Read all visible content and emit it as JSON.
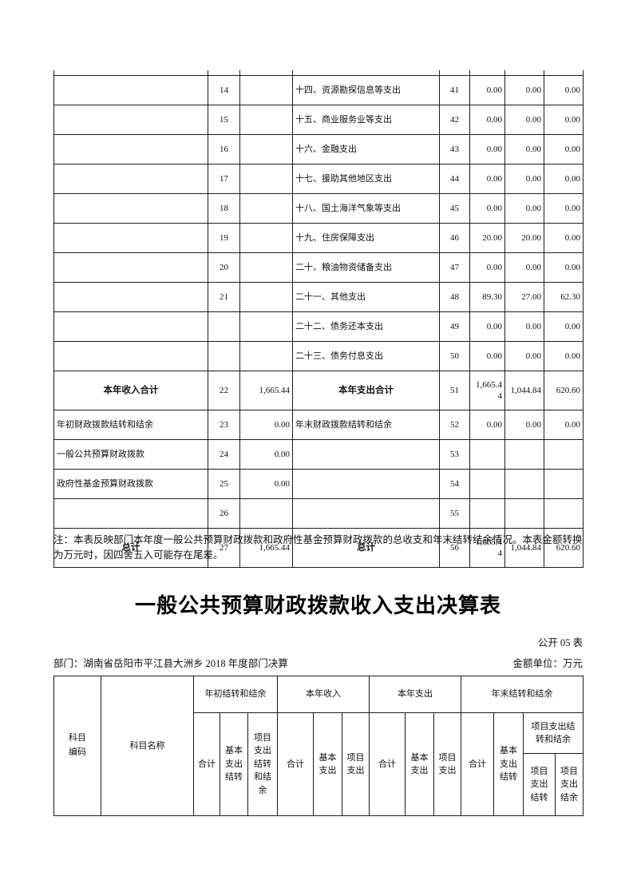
{
  "page": {
    "note": "注：本表反映部门本年度一般公共预算财政拨款和政府性基金预算财政拨款的总收支和年末结转结余情况。本表金额转换为万元时，因四舍五入可能存在尾差。",
    "title": "一般公共预算财政拨款收入支出决算表",
    "table_code": "公开 05 表",
    "department_line": "部门：湖南省岳阳市平江县大洲乡 2018 年度部门决算",
    "unit_line": "金额单位：万元"
  },
  "summary_table": {
    "rows": [
      {
        "income_label": "",
        "income_line": "14",
        "income_amount": "",
        "exp_label": "十四、资源勘探信息等支出",
        "exp_line": "41",
        "exp_total": "0.00",
        "exp_basic": "0.00",
        "exp_project": "0.00",
        "emphasis": false
      },
      {
        "income_label": "",
        "income_line": "15",
        "income_amount": "",
        "exp_label": "十五、商业服务业等支出",
        "exp_line": "42",
        "exp_total": "0.00",
        "exp_basic": "0.00",
        "exp_project": "0.00",
        "emphasis": false
      },
      {
        "income_label": "",
        "income_line": "16",
        "income_amount": "",
        "exp_label": "十六、金融支出",
        "exp_line": "43",
        "exp_total": "0.00",
        "exp_basic": "0.00",
        "exp_project": "0.00",
        "emphasis": false
      },
      {
        "income_label": "",
        "income_line": "17",
        "income_amount": "",
        "exp_label": "十七、援助其他地区支出",
        "exp_line": "44",
        "exp_total": "0.00",
        "exp_basic": "0.00",
        "exp_project": "0.00",
        "emphasis": false
      },
      {
        "income_label": "",
        "income_line": "18",
        "income_amount": "",
        "exp_label": "十八、国土海洋气象等支出",
        "exp_line": "45",
        "exp_total": "0.00",
        "exp_basic": "0.00",
        "exp_project": "0.00",
        "emphasis": false
      },
      {
        "income_label": "",
        "income_line": "19",
        "income_amount": "",
        "exp_label": "十九、住房保障支出",
        "exp_line": "46",
        "exp_total": "20.00",
        "exp_basic": "20.00",
        "exp_project": "0.00",
        "emphasis": false
      },
      {
        "income_label": "",
        "income_line": "20",
        "income_amount": "",
        "exp_label": "二十、粮油物资储备支出",
        "exp_line": "47",
        "exp_total": "0.00",
        "exp_basic": "0.00",
        "exp_project": "0.00",
        "emphasis": false
      },
      {
        "income_label": "",
        "income_line": "21",
        "income_amount": "",
        "exp_label": "二十一、其他支出",
        "exp_line": "48",
        "exp_total": "89.30",
        "exp_basic": "27.00",
        "exp_project": "62.30",
        "emphasis": false
      },
      {
        "income_label": "",
        "income_line": "",
        "income_amount": "",
        "exp_label": "二十二、债务还本支出",
        "exp_line": "49",
        "exp_total": "0.00",
        "exp_basic": "0.00",
        "exp_project": "0.00",
        "emphasis": false
      },
      {
        "income_label": "",
        "income_line": "",
        "income_amount": "",
        "exp_label": "二十三、债务付息支出",
        "exp_line": "50",
        "exp_total": "0.00",
        "exp_basic": "0.00",
        "exp_project": "0.00",
        "emphasis": false
      },
      {
        "income_label": "本年收入合计",
        "income_line": "22",
        "income_amount": "1,665.44",
        "exp_label": "本年支出合计",
        "exp_line": "51",
        "exp_total": "1,665.44",
        "exp_basic": "1,044.84",
        "exp_project": "620.60",
        "emphasis": true
      },
      {
        "income_label": "年初财政拨款结转和结余",
        "income_line": "23",
        "income_amount": "0.00",
        "exp_label": "年末财政拨款结转和结余",
        "exp_line": "52",
        "exp_total": "0.00",
        "exp_basic": "0.00",
        "exp_project": "0.00",
        "emphasis": false
      },
      {
        "income_label": "一般公共预算财政拨款",
        "income_line": "24",
        "income_amount": "0.00",
        "exp_label": "",
        "exp_line": "53",
        "exp_total": "",
        "exp_basic": "",
        "exp_project": "",
        "emphasis": false
      },
      {
        "income_label": "政府性基金预算财政拨款",
        "income_line": "25",
        "income_amount": "0.00",
        "exp_label": "",
        "exp_line": "54",
        "exp_total": "",
        "exp_basic": "",
        "exp_project": "",
        "emphasis": false
      },
      {
        "income_label": "",
        "income_line": "26",
        "income_amount": "",
        "exp_label": "",
        "exp_line": "55",
        "exp_total": "",
        "exp_basic": "",
        "exp_project": "",
        "emphasis": false
      },
      {
        "income_label": "总计",
        "income_line": "27",
        "income_amount": "1,665.44",
        "exp_label": "总计",
        "exp_line": "56",
        "exp_total": "1,665.44",
        "exp_basic": "1,044.84",
        "exp_project": "620.60",
        "emphasis": true
      }
    ]
  },
  "detail_table": {
    "header": {
      "subject_code": "科目编码",
      "subject_name": "科目名称",
      "groups": {
        "begin_balance": "年初结转和结余",
        "year_income": "本年收入",
        "year_expense": "本年支出",
        "end_balance": "年末结转和结余"
      },
      "sub": {
        "total": "合计",
        "basic_carryover": "基本支出结转",
        "project_carryover_balance": "项目支出结转和结余",
        "basic_expense": "基本支出",
        "project_expense": "项目支出",
        "project_carryover": "项目支出结转",
        "project_balance": "项目支出结余"
      }
    }
  }
}
